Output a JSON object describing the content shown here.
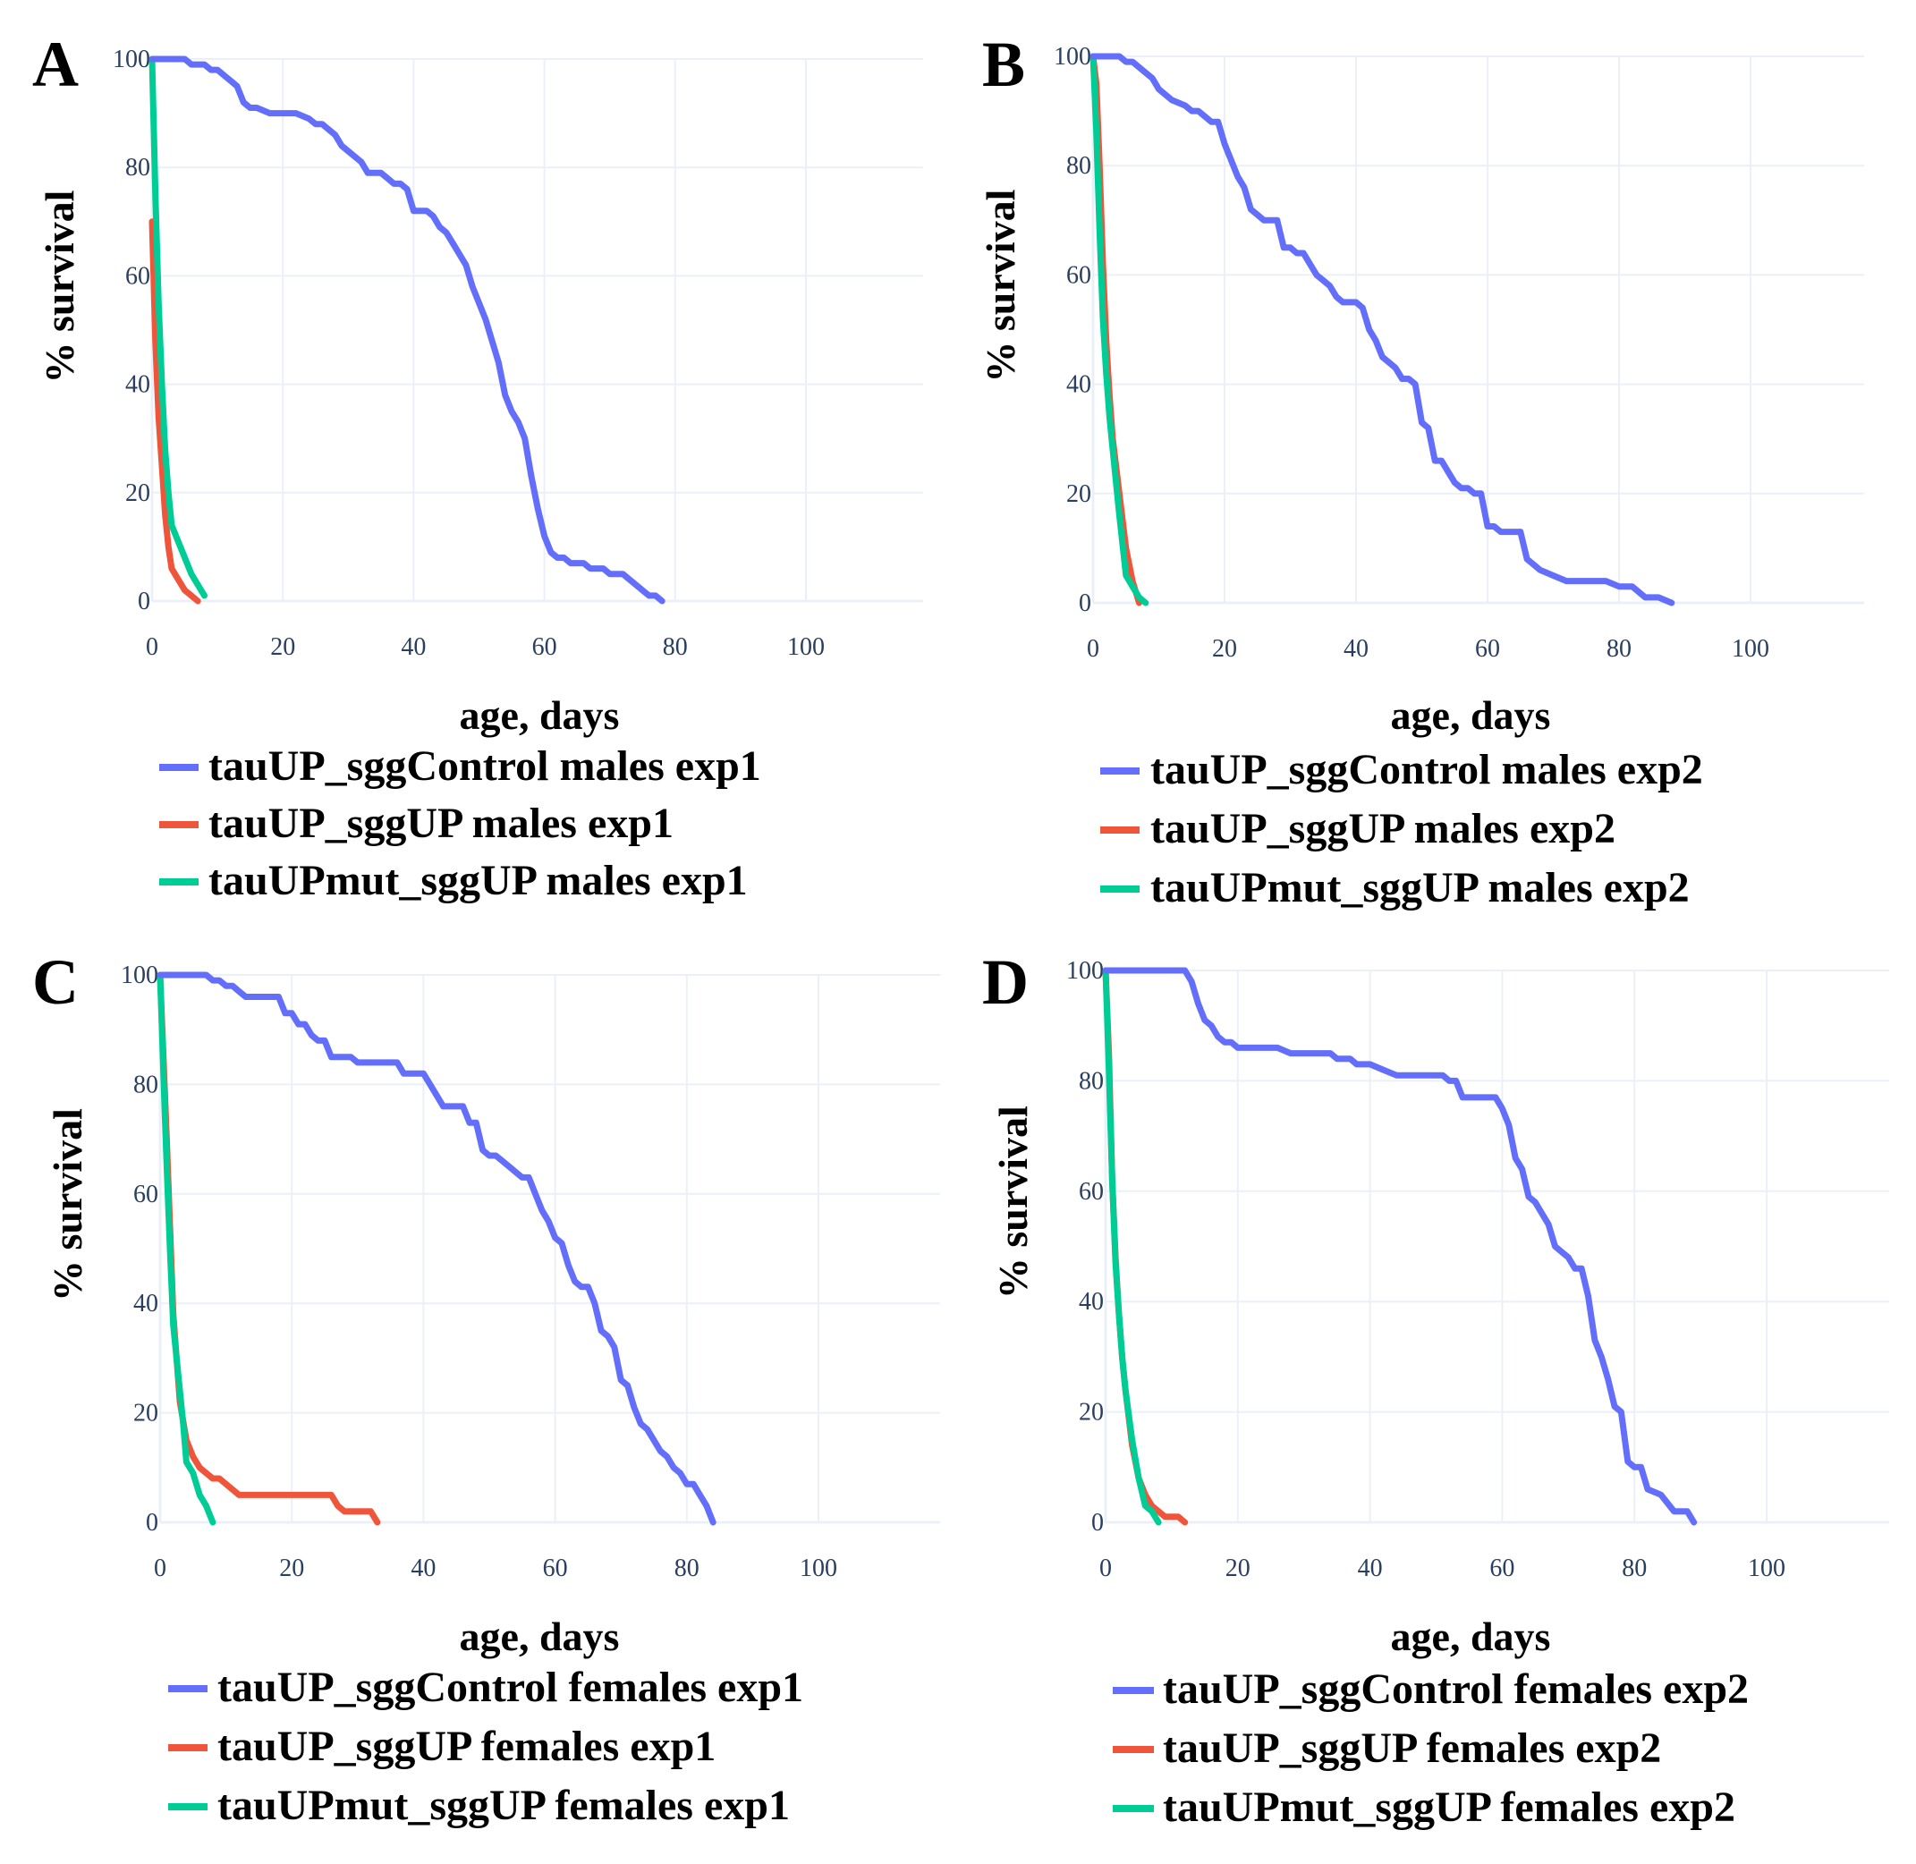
{
  "colors": {
    "control": "#636efa",
    "sggUP": "#ef553b",
    "mut": "#00cc96"
  },
  "chart_data": [
    {
      "panel": "A",
      "type": "line",
      "xlabel": "age, days",
      "ylabel": "% survival",
      "xlim": [
        0,
        118
      ],
      "ylim": [
        0,
        100
      ],
      "xticks": [
        0,
        20,
        40,
        60,
        80,
        100
      ],
      "yticks": [
        0,
        20,
        40,
        60,
        80,
        100
      ],
      "series": [
        {
          "name": "tauUP_sggControl males exp1",
          "color": "#636efa",
          "x": [
            0,
            5,
            6,
            8,
            9,
            10,
            11,
            12,
            13,
            14,
            15,
            16,
            18,
            22,
            24,
            25,
            26,
            28,
            29,
            30,
            31,
            32,
            33,
            35,
            36,
            37,
            38,
            39,
            40,
            41,
            42,
            43,
            44,
            45,
            46,
            47,
            48,
            49,
            50,
            51,
            52,
            53,
            54,
            55,
            56,
            57,
            58,
            59,
            60,
            61,
            62,
            63,
            64,
            65,
            66,
            67,
            68,
            69,
            70,
            71,
            72,
            73,
            74,
            75,
            76,
            77,
            78
          ],
          "y": [
            100,
            100,
            99,
            99,
            98,
            98,
            97,
            96,
            95,
            92,
            91,
            91,
            90,
            90,
            89,
            88,
            88,
            86,
            84,
            83,
            82,
            81,
            79,
            79,
            78,
            77,
            77,
            76,
            72,
            72,
            72,
            71,
            69,
            68,
            66,
            64,
            62,
            58,
            55,
            52,
            48,
            44,
            38,
            35,
            33,
            30,
            23,
            17,
            12,
            9,
            8,
            8,
            7,
            7,
            7,
            6,
            6,
            6,
            5,
            5,
            5,
            4,
            3,
            2,
            1,
            1,
            0
          ]
        },
        {
          "name": "tauUP_sggUP males exp1",
          "color": "#ef553b",
          "x": [
            0,
            0.5,
            1,
            1.5,
            2,
            2.5,
            3,
            4,
            5,
            6,
            7
          ],
          "y": [
            70,
            48,
            34,
            25,
            16,
            10,
            6,
            4,
            2,
            1,
            0
          ]
        },
        {
          "name": "tauUPmut_sggUP males exp1",
          "color": "#00cc96",
          "x": [
            0,
            0.5,
            1,
            1.5,
            2,
            2.5,
            3,
            4,
            5,
            6,
            7,
            8
          ],
          "y": [
            100,
            75,
            55,
            40,
            28,
            20,
            14,
            11,
            8,
            5,
            3,
            1
          ]
        }
      ]
    },
    {
      "panel": "B",
      "type": "line",
      "xlabel": "age, days",
      "ylabel": "% survival",
      "xlim": [
        0,
        118
      ],
      "ylim": [
        0,
        100
      ],
      "xticks": [
        0,
        20,
        40,
        60,
        80,
        100
      ],
      "yticks": [
        0,
        20,
        40,
        60,
        80,
        100
      ],
      "series": [
        {
          "name": "tauUP_sggControl males exp2",
          "color": "#636efa",
          "x": [
            0,
            4,
            5,
            6,
            8,
            9,
            10,
            12,
            14,
            15,
            16,
            17,
            18,
            19,
            20,
            22,
            23,
            24,
            25,
            26,
            27,
            28,
            29,
            30,
            31,
            32,
            33,
            34,
            35,
            36,
            37,
            38,
            39,
            40,
            41,
            42,
            43,
            44,
            45,
            46,
            47,
            48,
            49,
            50,
            51,
            52,
            53,
            54,
            55,
            56,
            57,
            58,
            59,
            60,
            61,
            62,
            63,
            64,
            65,
            66,
            67,
            68,
            70,
            72,
            74,
            78,
            80,
            82,
            84,
            86,
            88
          ],
          "y": [
            100,
            100,
            99,
            99,
            97,
            96,
            94,
            92,
            91,
            90,
            90,
            89,
            88,
            88,
            84,
            78,
            76,
            72,
            71,
            70,
            70,
            70,
            65,
            65,
            64,
            64,
            62,
            60,
            59,
            58,
            56,
            55,
            55,
            55,
            54,
            50,
            48,
            45,
            44,
            43,
            41,
            41,
            40,
            33,
            32,
            26,
            26,
            24,
            22,
            21,
            21,
            20,
            20,
            14,
            14,
            13,
            13,
            13,
            13,
            8,
            7,
            6,
            5,
            4,
            4,
            4,
            3,
            3,
            1,
            1,
            0
          ]
        },
        {
          "name": "tauUP_sggUP males exp2",
          "color": "#ef553b",
          "x": [
            0,
            0.5,
            1,
            1.5,
            2,
            2.5,
            3,
            4,
            5,
            6,
            7
          ],
          "y": [
            100,
            95,
            80,
            62,
            48,
            38,
            30,
            20,
            10,
            4,
            0
          ]
        },
        {
          "name": "tauUPmut_sggUP males exp2",
          "color": "#00cc96",
          "x": [
            0,
            0.5,
            1,
            1.5,
            2,
            2.5,
            3,
            4,
            5,
            6,
            7,
            8
          ],
          "y": [
            100,
            86,
            68,
            52,
            42,
            34,
            28,
            16,
            5,
            3,
            1,
            0
          ]
        }
      ]
    },
    {
      "panel": "C",
      "type": "line",
      "xlabel": "age, days",
      "ylabel": "% survival",
      "xlim": [
        0,
        118
      ],
      "ylim": [
        0,
        100
      ],
      "xticks": [
        0,
        20,
        40,
        60,
        80,
        100
      ],
      "yticks": [
        0,
        20,
        40,
        60,
        80,
        100
      ],
      "series": [
        {
          "name": "tauUP_sggControl females exp1",
          "color": "#636efa",
          "x": [
            0,
            7,
            8,
            9,
            10,
            11,
            12,
            13,
            14,
            15,
            16,
            17,
            18,
            19,
            20,
            21,
            22,
            23,
            24,
            25,
            26,
            27,
            28,
            29,
            30,
            32,
            34,
            35,
            36,
            37,
            38,
            39,
            40,
            41,
            42,
            43,
            44,
            45,
            46,
            47,
            48,
            49,
            50,
            51,
            52,
            53,
            54,
            55,
            56,
            57,
            58,
            59,
            60,
            61,
            62,
            63,
            64,
            65,
            66,
            67,
            68,
            69,
            70,
            71,
            72,
            73,
            74,
            75,
            76,
            77,
            78,
            79,
            80,
            81,
            82,
            83,
            84
          ],
          "y": [
            100,
            100,
            99,
            99,
            98,
            98,
            97,
            96,
            96,
            96,
            96,
            96,
            96,
            93,
            93,
            91,
            91,
            89,
            88,
            88,
            85,
            85,
            85,
            85,
            84,
            84,
            84,
            84,
            84,
            82,
            82,
            82,
            82,
            80,
            78,
            76,
            76,
            76,
            76,
            73,
            73,
            68,
            67,
            67,
            66,
            65,
            64,
            63,
            63,
            60,
            57,
            55,
            52,
            51,
            47,
            44,
            43,
            43,
            40,
            35,
            34,
            32,
            26,
            25,
            21,
            18,
            17,
            15,
            13,
            12,
            10,
            9,
            7,
            7,
            5,
            3,
            0
          ]
        },
        {
          "name": "tauUP_sggUP females exp1",
          "color": "#ef553b",
          "x": [
            0,
            1,
            2,
            3,
            4,
            5,
            6,
            7,
            8,
            9,
            10,
            11,
            12,
            14,
            16,
            18,
            20,
            22,
            24,
            26,
            27,
            28,
            29,
            30,
            31,
            32,
            33
          ],
          "y": [
            100,
            70,
            38,
            22,
            15,
            12,
            10,
            9,
            8,
            8,
            7,
            6,
            5,
            5,
            5,
            5,
            5,
            5,
            5,
            5,
            3,
            2,
            2,
            2,
            2,
            2,
            0
          ]
        },
        {
          "name": "tauUPmut_sggUP females exp1",
          "color": "#00cc96",
          "x": [
            0,
            0.5,
            1,
            1.5,
            2,
            2.5,
            3,
            3.5,
            4,
            5,
            6,
            7,
            8
          ],
          "y": [
            100,
            82,
            65,
            50,
            36,
            30,
            24,
            18,
            11,
            9,
            5,
            3,
            0
          ]
        }
      ]
    },
    {
      "panel": "D",
      "type": "line",
      "xlabel": "age, days",
      "ylabel": "% survival",
      "xlim": [
        0,
        118
      ],
      "ylim": [
        0,
        100
      ],
      "xticks": [
        0,
        20,
        40,
        60,
        80,
        100
      ],
      "yticks": [
        0,
        20,
        40,
        60,
        80,
        100
      ],
      "series": [
        {
          "name": "tauUP_sggControl females exp2",
          "color": "#636efa",
          "x": [
            0,
            12,
            13,
            14,
            15,
            16,
            17,
            18,
            19,
            20,
            21,
            22,
            24,
            26,
            28,
            29,
            30,
            32,
            33,
            34,
            35,
            36,
            37,
            38,
            40,
            42,
            44,
            46,
            48,
            50,
            51,
            52,
            53,
            54,
            55,
            56,
            58,
            59,
            60,
            61,
            62,
            63,
            64,
            65,
            66,
            67,
            68,
            69,
            70,
            71,
            72,
            73,
            74,
            75,
            76,
            77,
            78,
            79,
            80,
            81,
            82,
            84,
            86,
            88,
            89
          ],
          "y": [
            100,
            100,
            98,
            94,
            91,
            90,
            88,
            87,
            87,
            86,
            86,
            86,
            86,
            86,
            85,
            85,
            85,
            85,
            85,
            85,
            84,
            84,
            84,
            83,
            83,
            82,
            81,
            81,
            81,
            81,
            81,
            80,
            80,
            77,
            77,
            77,
            77,
            77,
            75,
            72,
            66,
            64,
            59,
            58,
            56,
            54,
            50,
            49,
            48,
            46,
            46,
            41,
            33,
            30,
            26,
            21,
            20,
            11,
            10,
            10,
            6,
            5,
            2,
            2,
            0
          ]
        },
        {
          "name": "tauUP_sggUP females exp2",
          "color": "#ef553b",
          "x": [
            0,
            0.5,
            1,
            1.5,
            2,
            2.5,
            3,
            4,
            5,
            6,
            7,
            8,
            9,
            10,
            11,
            12
          ],
          "y": [
            100,
            85,
            62,
            48,
            38,
            30,
            24,
            14,
            8,
            5,
            3,
            2,
            1,
            1,
            1,
            0
          ]
        },
        {
          "name": "tauUPmut_sggUP females exp2",
          "color": "#00cc96",
          "x": [
            0,
            0.5,
            1,
            1.5,
            2,
            2.5,
            3,
            4,
            5,
            6,
            7,
            8
          ],
          "y": [
            100,
            82,
            62,
            47,
            38,
            30,
            24,
            15,
            8,
            3,
            2,
            0
          ]
        }
      ]
    }
  ]
}
